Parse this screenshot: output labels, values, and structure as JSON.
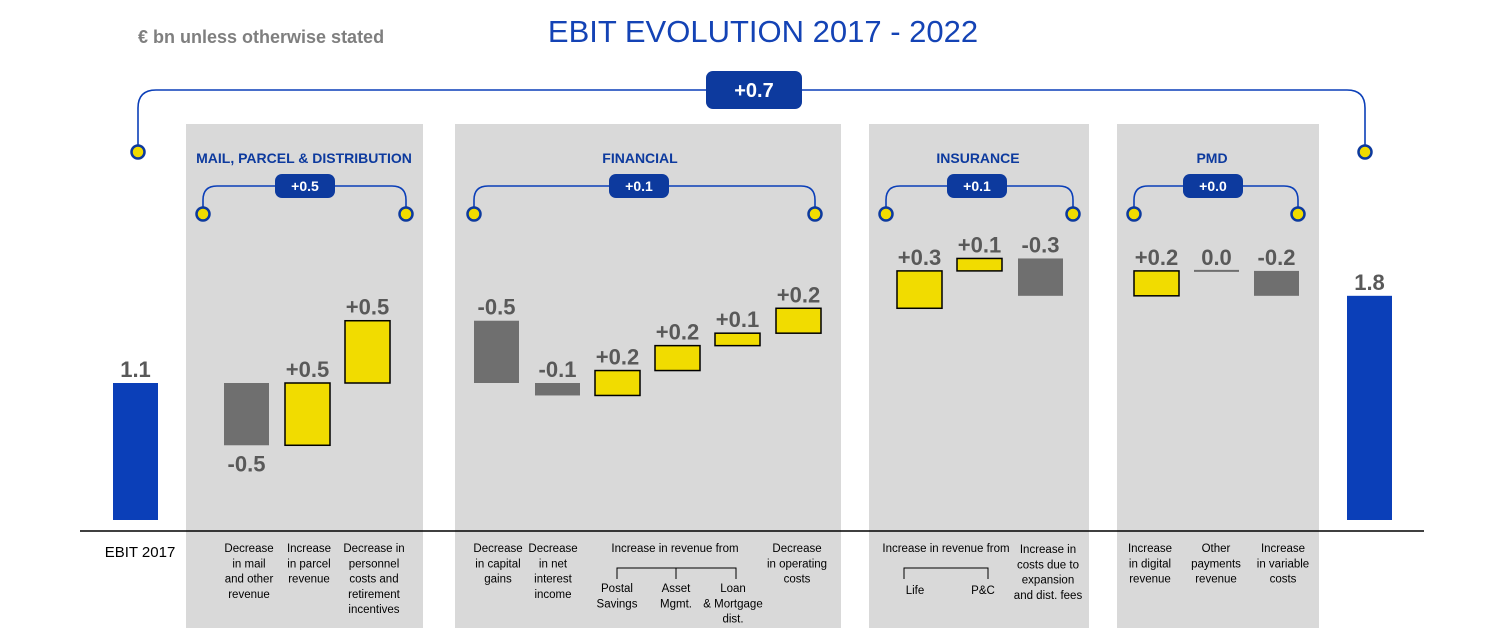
{
  "subtitle": "€ bn unless otherwise stated",
  "title": "EBIT EVOLUTION 2017 - 2022",
  "total_change": "+0.7",
  "colors": {
    "blue": "#0b3fb8",
    "navy": "#0d3a9e",
    "yellow": "#f1dc00",
    "gray": "#6f6f6f",
    "panel": "#d9d9d9",
    "label_gray": "#595959"
  },
  "segments": [
    {
      "name": "MAIL, PARCEL & DISTRIBUTION",
      "change": "+0.5"
    },
    {
      "name": "FINANCIAL",
      "change": "+0.1"
    },
    {
      "name": "INSURANCE",
      "change": "+0.1"
    },
    {
      "name": "PMD",
      "change": "+0.0"
    }
  ],
  "group_headers": {
    "financial": "Increase in revenue  from",
    "insurance": "Increase in revenue  from"
  },
  "chart_data": {
    "type": "bar",
    "subtype": "waterfall",
    "title": "EBIT EVOLUTION 2017 - 2022",
    "unit": "€ bn",
    "start": {
      "category": "EBIT 2017",
      "value": 1.1,
      "label": "1.1"
    },
    "end": {
      "category": "",
      "value": 1.8,
      "label": "1.8"
    },
    "steps": [
      {
        "segment": "MAIL, PARCEL & DISTRIBUTION",
        "category": "Decrease in mail and other revenue",
        "value": -0.5,
        "label": "-0.5"
      },
      {
        "segment": "MAIL, PARCEL & DISTRIBUTION",
        "category": "Increase in parcel revenue",
        "value": 0.5,
        "label": "+0.5"
      },
      {
        "segment": "MAIL, PARCEL & DISTRIBUTION",
        "category": "Decrease in personnel costs and retirement incentives",
        "value": 0.5,
        "label": "+0.5"
      },
      {
        "segment": "FINANCIAL",
        "category": "Decrease in capital gains",
        "value": -0.5,
        "label": "-0.5"
      },
      {
        "segment": "FINANCIAL",
        "category": "Decrease in net interest income",
        "value": -0.1,
        "label": "-0.1"
      },
      {
        "segment": "FINANCIAL",
        "category": "Postal Savings",
        "value": 0.2,
        "label": "+0.2"
      },
      {
        "segment": "FINANCIAL",
        "category": "Asset Mgmt.",
        "value": 0.2,
        "label": "+0.2"
      },
      {
        "segment": "FINANCIAL",
        "category": "Loan & Mortgage dist.",
        "value": 0.1,
        "label": "+0.1"
      },
      {
        "segment": "FINANCIAL",
        "category": "Decrease in operating costs",
        "value": 0.2,
        "label": "+0.2"
      },
      {
        "segment": "INSURANCE",
        "category": "Life",
        "value": 0.3,
        "label": "+0.3"
      },
      {
        "segment": "INSURANCE",
        "category": "P&C",
        "value": 0.1,
        "label": "+0.1"
      },
      {
        "segment": "INSURANCE",
        "category": "Increase in costs due to expansion and dist. fees",
        "value": -0.3,
        "label": "-0.3"
      },
      {
        "segment": "PMD",
        "category": "Increase in digital revenue",
        "value": 0.2,
        "label": "+0.2"
      },
      {
        "segment": "PMD",
        "category": "Other payments revenue",
        "value": 0.0,
        "label": "0.0"
      },
      {
        "segment": "PMD",
        "category": "Increase in variable costs",
        "value": -0.2,
        "label": "-0.2"
      }
    ],
    "category_label_lines": [
      [
        "EBIT 2017"
      ],
      [
        "Decrease",
        "in mail",
        "and other",
        "revenue"
      ],
      [
        "Increase",
        "in parcel",
        "revenue"
      ],
      [
        "Decrease in",
        "personnel",
        "costs and",
        "retirement",
        "incentives"
      ],
      [
        "Decrease",
        "in capital",
        "gains"
      ],
      [
        "Decrease",
        "in net",
        "interest",
        "income"
      ],
      [
        "Postal",
        "Savings"
      ],
      [
        "Asset",
        "Mgmt."
      ],
      [
        "Loan",
        "& Mortgage",
        "dist."
      ],
      [
        "Decrease",
        "in operating",
        "costs"
      ],
      [
        "Life"
      ],
      [
        "P&C"
      ],
      [
        "Increase in",
        "costs due to",
        "expansion",
        "and dist. fees"
      ],
      [
        "Increase",
        "in  digital",
        "revenue"
      ],
      [
        "Other",
        "payments",
        "revenue"
      ],
      [
        "Increase",
        "in variable",
        "costs"
      ]
    ],
    "grid": false,
    "legend": "none"
  }
}
